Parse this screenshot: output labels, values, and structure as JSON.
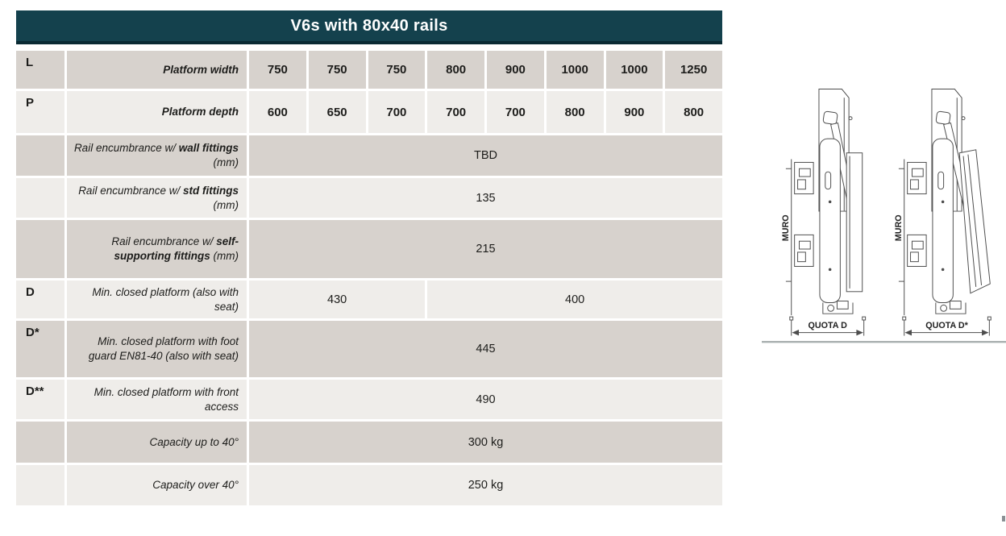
{
  "title": "V6s with 80x40 rails",
  "table": {
    "rows": [
      {
        "letter": "L",
        "label": {
          "pre": "",
          "bold": "Platform width",
          "post": ""
        },
        "cells": [
          {
            "t": "750",
            "s": 1,
            "b": true
          },
          {
            "t": "750",
            "s": 1,
            "b": true
          },
          {
            "t": "750",
            "s": 1,
            "b": true
          },
          {
            "t": "800",
            "s": 1,
            "b": true
          },
          {
            "t": "900",
            "s": 1,
            "b": true
          },
          {
            "t": "1000",
            "s": 1,
            "b": true
          },
          {
            "t": "1000",
            "s": 1,
            "b": true
          },
          {
            "t": "1250",
            "s": 1,
            "b": true
          }
        ]
      },
      {
        "letter": "P",
        "label": {
          "pre": "",
          "bold": "Platform depth",
          "post": ""
        },
        "cells": [
          {
            "t": "600",
            "s": 1,
            "b": true
          },
          {
            "t": "650",
            "s": 1,
            "b": true
          },
          {
            "t": "700",
            "s": 1,
            "b": true
          },
          {
            "t": "700",
            "s": 1,
            "b": true
          },
          {
            "t": "700",
            "s": 1,
            "b": true
          },
          {
            "t": "800",
            "s": 1,
            "b": true
          },
          {
            "t": "900",
            "s": 1,
            "b": true
          },
          {
            "t": "800",
            "s": 1,
            "b": true
          }
        ]
      },
      {
        "letter": "",
        "label": {
          "pre": "Rail encumbrance w/ ",
          "bold": "wall fittings",
          "post": " (mm)"
        },
        "cells": [
          {
            "t": "TBD",
            "s": 8,
            "b": false
          }
        ]
      },
      {
        "letter": "",
        "label": {
          "pre": "Rail encumbrance w/ ",
          "bold": "std fittings",
          "post": " (mm)"
        },
        "cells": [
          {
            "t": "135",
            "s": 8,
            "b": false
          }
        ]
      },
      {
        "letter": "",
        "label": {
          "pre": "Rail encumbrance w/ ",
          "bold": "self-supporting fittings",
          "post": " (mm)"
        },
        "cells": [
          {
            "t": "215",
            "s": 8,
            "b": false
          }
        ]
      },
      {
        "letter": "D",
        "label": {
          "pre": "Min. closed platform (also with seat)",
          "bold": "",
          "post": ""
        },
        "cells": [
          {
            "t": "430",
            "s": 3,
            "b": false
          },
          {
            "t": "400",
            "s": 5,
            "b": false
          }
        ]
      },
      {
        "letter": "D*",
        "label": {
          "pre": "Min. closed platform with foot guard EN81-40 (also with seat)",
          "bold": "",
          "post": ""
        },
        "cells": [
          {
            "t": "445",
            "s": 8,
            "b": false
          }
        ]
      },
      {
        "letter": "D**",
        "label": {
          "pre": "Min. closed platform with front access",
          "bold": "",
          "post": ""
        },
        "cells": [
          {
            "t": "490",
            "s": 8,
            "b": false
          }
        ]
      },
      {
        "letter": "",
        "label": {
          "pre": "Capacity up to 40°",
          "bold": "",
          "post": ""
        },
        "cells": [
          {
            "t": "300 kg",
            "s": 8,
            "b": false
          }
        ]
      },
      {
        "letter": "",
        "label": {
          "pre": "Capacity over 40°",
          "bold": "",
          "post": ""
        },
        "cells": [
          {
            "t": "250 kg",
            "s": 8,
            "b": false
          }
        ]
      }
    ]
  },
  "diagrams": {
    "wall_label": "MURO",
    "left_caption": "QUOTA D",
    "right_caption": "QUOTA D*"
  },
  "colors": {
    "header_bg": "#14414d",
    "header_border": "#0a2a33",
    "row_dark": "#d7d2cd",
    "row_light": "#efedea",
    "text": "#1d1d1b"
  }
}
